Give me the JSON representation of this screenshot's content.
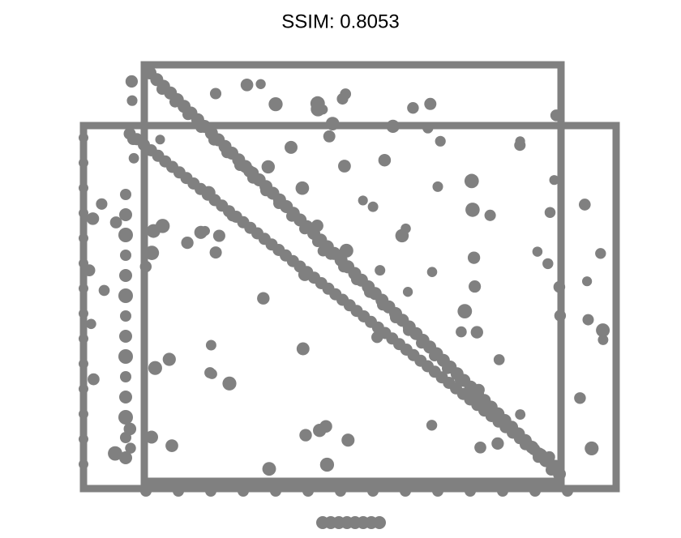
{
  "title": "SSIM: 0.8053"
}
